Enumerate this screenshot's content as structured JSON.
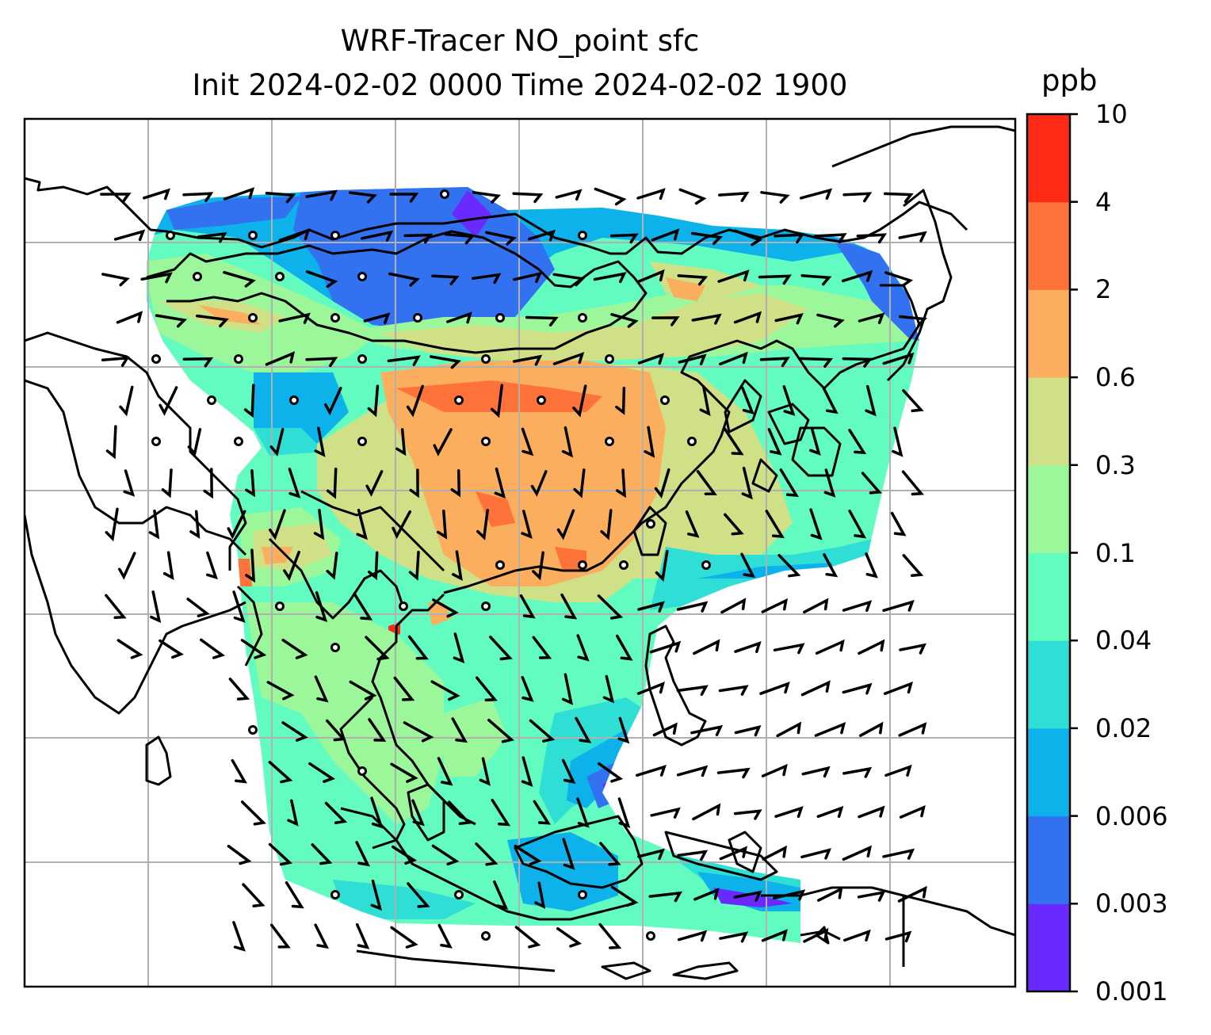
{
  "title": {
    "line1": "WRF-Tracer NO_point sfc",
    "line2": "Init 2024-02-02 0000 Time 2024-02-02 1900"
  },
  "colorbar": {
    "unit": "ppb",
    "levels": [
      "0.001",
      "0.003",
      "0.006",
      "0.02",
      "0.04",
      "0.1",
      "0.3",
      "0.6",
      "2",
      "4",
      "10"
    ],
    "colors": [
      "#6a2aff",
      "#3271f0",
      "#0db2ea",
      "#2fdfd6",
      "#62fbc0",
      "#9cf79a",
      "#cfe086",
      "#fcae5f",
      "#ff733a",
      "#ff2b16"
    ]
  },
  "colors": {
    "coastline": "#000000",
    "gridline": "#b0b0b0",
    "wind_barb": "#000000",
    "background": "#ffffff"
  }
}
